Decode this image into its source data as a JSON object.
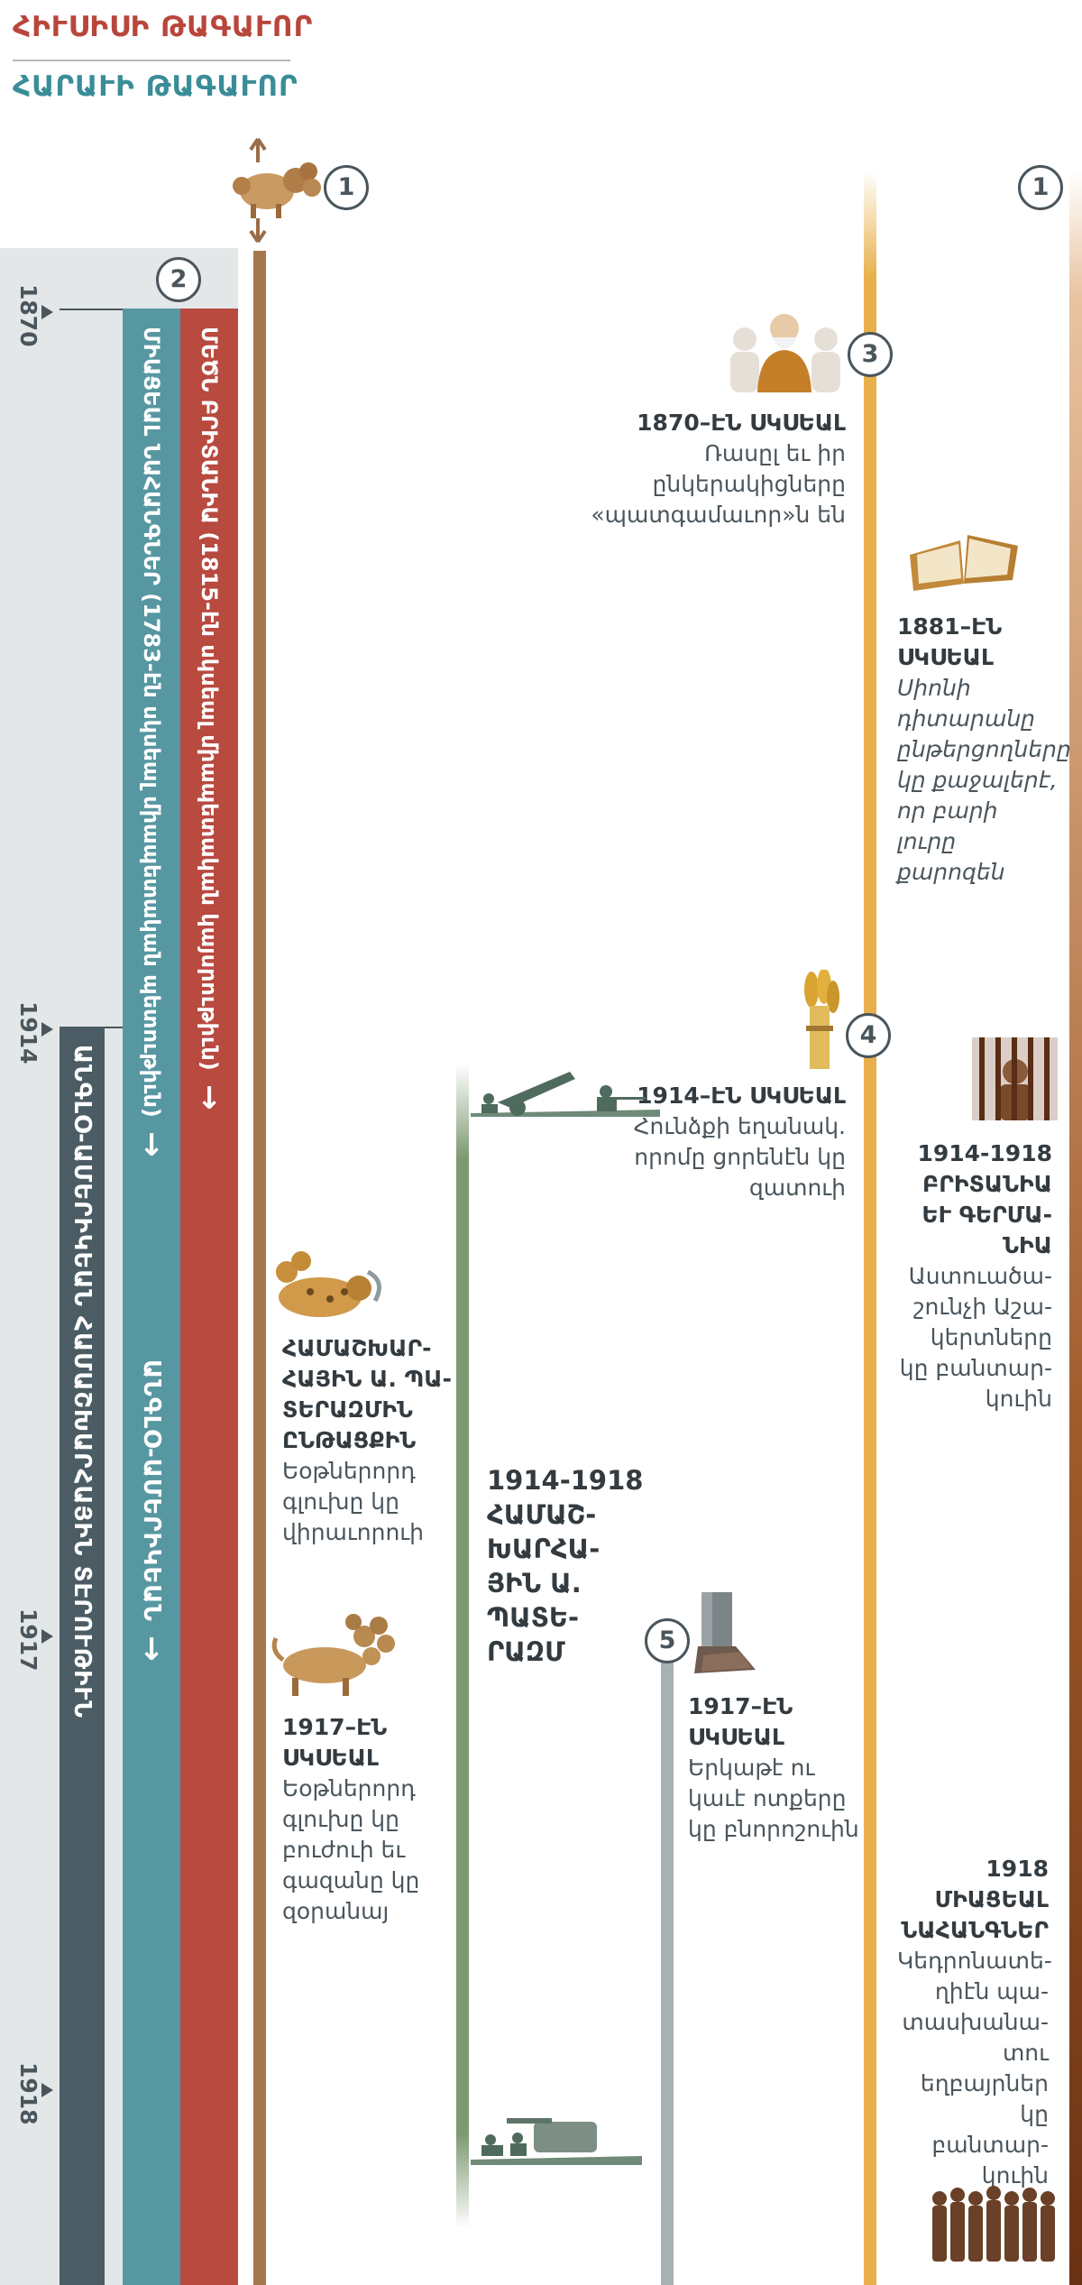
{
  "header": {
    "north_king": "ՀԻՒՍԻՍԻ ԹԱԳԱՒՈՐ",
    "south_king": "ՀԱՐԱՒԻ ԹԱԳԱՒՈՐ"
  },
  "years": [
    "1870",
    "1914",
    "1917",
    "1918"
  ],
  "bars": {
    "red": {
      "label": "ՄԵԾՆ ԲՐԻՏԱՆԻԱ (1815-էն սկսեալ միապետական կայսրութիւն)",
      "arrow": "↓"
    },
    "teal": {
      "label": "ՄԻԱՑԵԱԼ ՆԱՀԱՆԳՆԵՐ (1783-էն սկսեալ միապետական պետութիւն)",
      "arrow": "↓",
      "lower_label": "ԱՆԳԼՕ-ԱՄԵՐԻԿԵԱՆ",
      "lower_arrow": "↓"
    },
    "dark": {
      "label": "ԱՆԳԼՕ-ԱՄԵՐԻԿԵԱՆ ՀԱՄԱՇԽԱՐՀԱՅԻՆ ՏԷՐՈՒԹԻՒՆ"
    }
  },
  "circles": {
    "c1_left": "1",
    "c1_right": "1",
    "c2": "2",
    "c3": "3",
    "c4": "4",
    "c5": "5"
  },
  "events": {
    "e1870": {
      "title": "1870–ԷՆ ՍԿՍԵԱԼ",
      "body": "Ռասըլ եւ իր ընկերակիցները «պատգամաւոր»ն են"
    },
    "e1881": {
      "title": "1881–ԷՆ ՍԿՍԵԱԼ",
      "body": "Սիոնի դիտարանը ընթերցողները կը քաջալերէ, որ բարի լուրը քարոզեն"
    },
    "e1914_wheat": {
      "title": "1914–ԷՆ ՍԿՍԵԱԼ",
      "body": "Հունձքի եղանակ. որոմը ցորենէն կը զատուի"
    },
    "e1914_prison": {
      "title": "1914-1918 ԲՐԻՏԱՆԻԱ ԵՒ ԳԵՐՄԱ-ՆԻԱ",
      "body": "Աստուածա-շունչի Աշա-կերտները կը բանտար-կուին"
    },
    "e_beast": {
      "title": "ՀԱՄԱՇԽԱՐ-ՀԱՅԻՆ Ա. ՊԱ-ՏԵՐԱԶՄԻՆ ԸՆԹԱՑՔԻՆ",
      "body": "Եօթներորդ գլուխը կը վիրաւորուի"
    },
    "e_ww1": {
      "title": "1914-1918 ՀԱՄԱՇ-ԽԱՐՀԱ-ՅԻՆ Ա. ՊԱՏԵ-ՐԱԶՄ"
    },
    "e1917_beast": {
      "title": "1917–ԷՆ ՍԿՍԵԱԼ",
      "body": "Եօթներորդ գլուխը կը բուժուի եւ գազանը կը զօրանայ"
    },
    "e1917_feet": {
      "title": "1917–ԷՆ ՍԿՍԵԱԼ",
      "body": "Երկաթէ ու կաւէ ոտքերը կը բնորոշուին"
    },
    "e1918": {
      "title": "1918 ՄԻԱՑԵԱԼ ՆԱՀԱՆԳՆԵՐ",
      "body": "Կեդրոնատե-ղիէն պա-տասխանա-տու եղբայրներ կը բանտար-կուին"
    }
  },
  "colors": {
    "red": "#b84a40",
    "teal": "#5797a1",
    "dark": "#4b5c64",
    "gray_panel": "#e3e7e8",
    "brown": "#a6774f",
    "green": "#7e9a72",
    "silver": "#a8b2b3",
    "gold": "#e8b04c"
  }
}
